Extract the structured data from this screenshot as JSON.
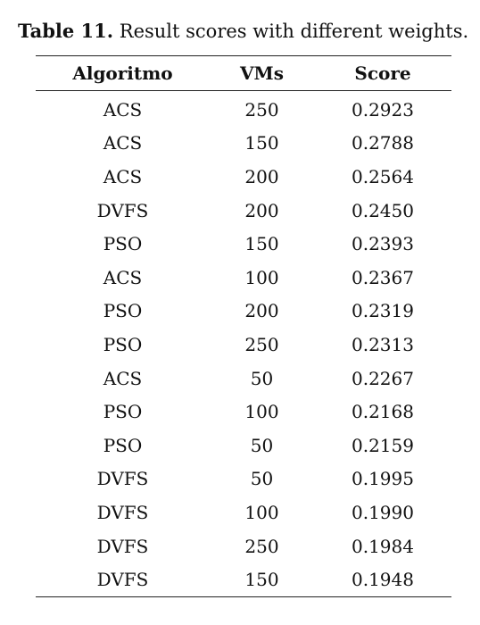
{
  "caption": {
    "label": "Table 11.",
    "text": " Result scores with different weights."
  },
  "table": {
    "columns": [
      "Algoritmo",
      "VMs",
      "Score"
    ],
    "rows": [
      [
        "ACS",
        "250",
        "0.2923"
      ],
      [
        "ACS",
        "150",
        "0.2788"
      ],
      [
        "ACS",
        "200",
        "0.2564"
      ],
      [
        "DVFS",
        "200",
        "0.2450"
      ],
      [
        "PSO",
        "150",
        "0.2393"
      ],
      [
        "ACS",
        "100",
        "0.2367"
      ],
      [
        "PSO",
        "200",
        "0.2319"
      ],
      [
        "PSO",
        "250",
        "0.2313"
      ],
      [
        "ACS",
        "50",
        "0.2267"
      ],
      [
        "PSO",
        "100",
        "0.2168"
      ],
      [
        "PSO",
        "50",
        "0.2159"
      ],
      [
        "DVFS",
        "50",
        "0.1995"
      ],
      [
        "DVFS",
        "100",
        "0.1990"
      ],
      [
        "DVFS",
        "250",
        "0.1984"
      ],
      [
        "DVFS",
        "150",
        "0.1948"
      ]
    ]
  }
}
